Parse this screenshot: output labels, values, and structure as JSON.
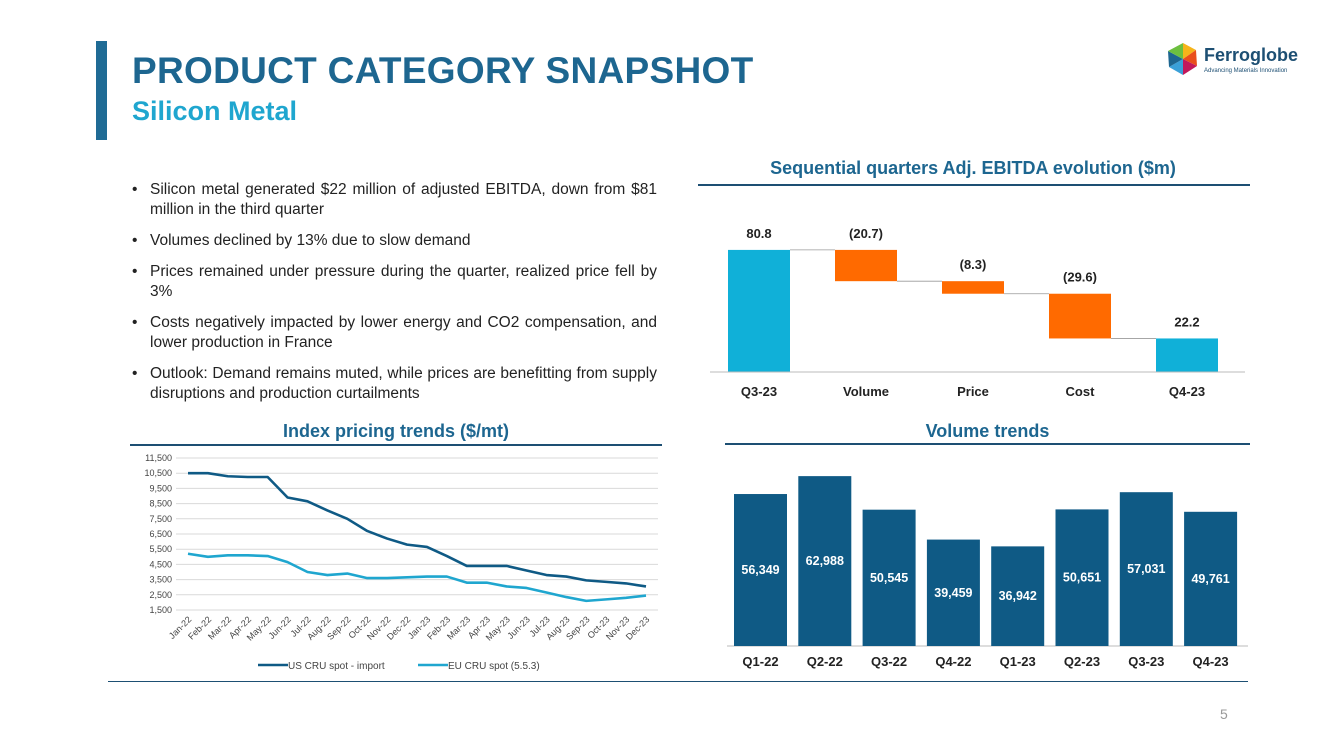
{
  "header": {
    "title": "PRODUCT CATEGORY SNAPSHOT",
    "subtitle": "Silicon Metal",
    "logo_name": "Ferroglobe",
    "logo_tagline": "Advancing Materials Innovation"
  },
  "bullets": [
    "Silicon metal generated $22 million of adjusted EBITDA, down from $81 million in the third quarter",
    "Volumes declined by 13% due to slow demand",
    "Prices remained under pressure during the quarter, realized price fell by 3%",
    "Costs negatively impacted by lower energy and CO2 compensation, and lower production in France",
    "Outlook: Demand remains muted, while prices are benefitting from supply disruptions and production curtailments"
  ],
  "page_number": "5",
  "colors": {
    "dark_blue": "#1d6690",
    "light_blue": "#1fa6cf",
    "orange": "#ff6a00",
    "navy_bar": "#0f5a85"
  },
  "chart_data": [
    {
      "type": "waterfall",
      "title": "Sequential quarters Adj. EBITDA evolution ($m)",
      "categories": [
        "Q3-23",
        "Volume",
        "Price",
        "Cost",
        "Q4-23"
      ],
      "values": [
        80.8,
        -20.7,
        -8.3,
        -29.6,
        22.2
      ],
      "labels": [
        "80.8",
        "(20.7)",
        "(8.3)",
        "(29.6)",
        "22.2"
      ],
      "total_color": "#10b0d8",
      "negative_color": "#ff6a00"
    },
    {
      "type": "line",
      "title": "Index pricing trends ($/mt)",
      "x": [
        "Jan-22",
        "Feb-22",
        "Mar-22",
        "Apr-22",
        "May-22",
        "Jun-22",
        "Jul-22",
        "Aug-22",
        "Sep-22",
        "Oct-22",
        "Nov-22",
        "Dec-22",
        "Jan-23",
        "Feb-23",
        "Mar-23",
        "Apr-23",
        "May-23",
        "Jun-23",
        "Jul-23",
        "Aug-23",
        "Sep-23",
        "Oct-23",
        "Nov-23",
        "Dec-23"
      ],
      "yticks": [
        "11,500",
        "10,500",
        "9,500",
        "8,500",
        "7,500",
        "6,500",
        "5,500",
        "4,500",
        "3,500",
        "2,500",
        "1,500"
      ],
      "ylim": [
        1500,
        11500
      ],
      "series": [
        {
          "name": "US CRU spot - import",
          "color": "#0f5a85",
          "values": [
            10500,
            10500,
            10300,
            10250,
            10250,
            8900,
            8650,
            8050,
            7500,
            6700,
            6200,
            5800,
            5650,
            5050,
            4400,
            4400,
            4400,
            4100,
            3800,
            3700,
            3450,
            3350,
            3250,
            3050
          ]
        },
        {
          "name": "EU CRU spot (5.5.3)",
          "color": "#1fa6cf",
          "values": [
            5200,
            5000,
            5100,
            5100,
            5050,
            4650,
            4000,
            3800,
            3900,
            3600,
            3600,
            3650,
            3700,
            3700,
            3300,
            3300,
            3050,
            2950,
            2650,
            2350,
            2100,
            2200,
            2300,
            2450
          ]
        }
      ]
    },
    {
      "type": "bar",
      "title": "Volume trends",
      "categories": [
        "Q1-22",
        "Q2-22",
        "Q3-22",
        "Q4-22",
        "Q1-23",
        "Q2-23",
        "Q3-23",
        "Q4-23"
      ],
      "values": [
        56349,
        62988,
        50545,
        39459,
        36942,
        50651,
        57031,
        49761
      ],
      "labels": [
        "56,349",
        "62,988",
        "50,545",
        "39,459",
        "36,942",
        "50,651",
        "57,031",
        "49,761"
      ],
      "color": "#0f5a85"
    }
  ]
}
